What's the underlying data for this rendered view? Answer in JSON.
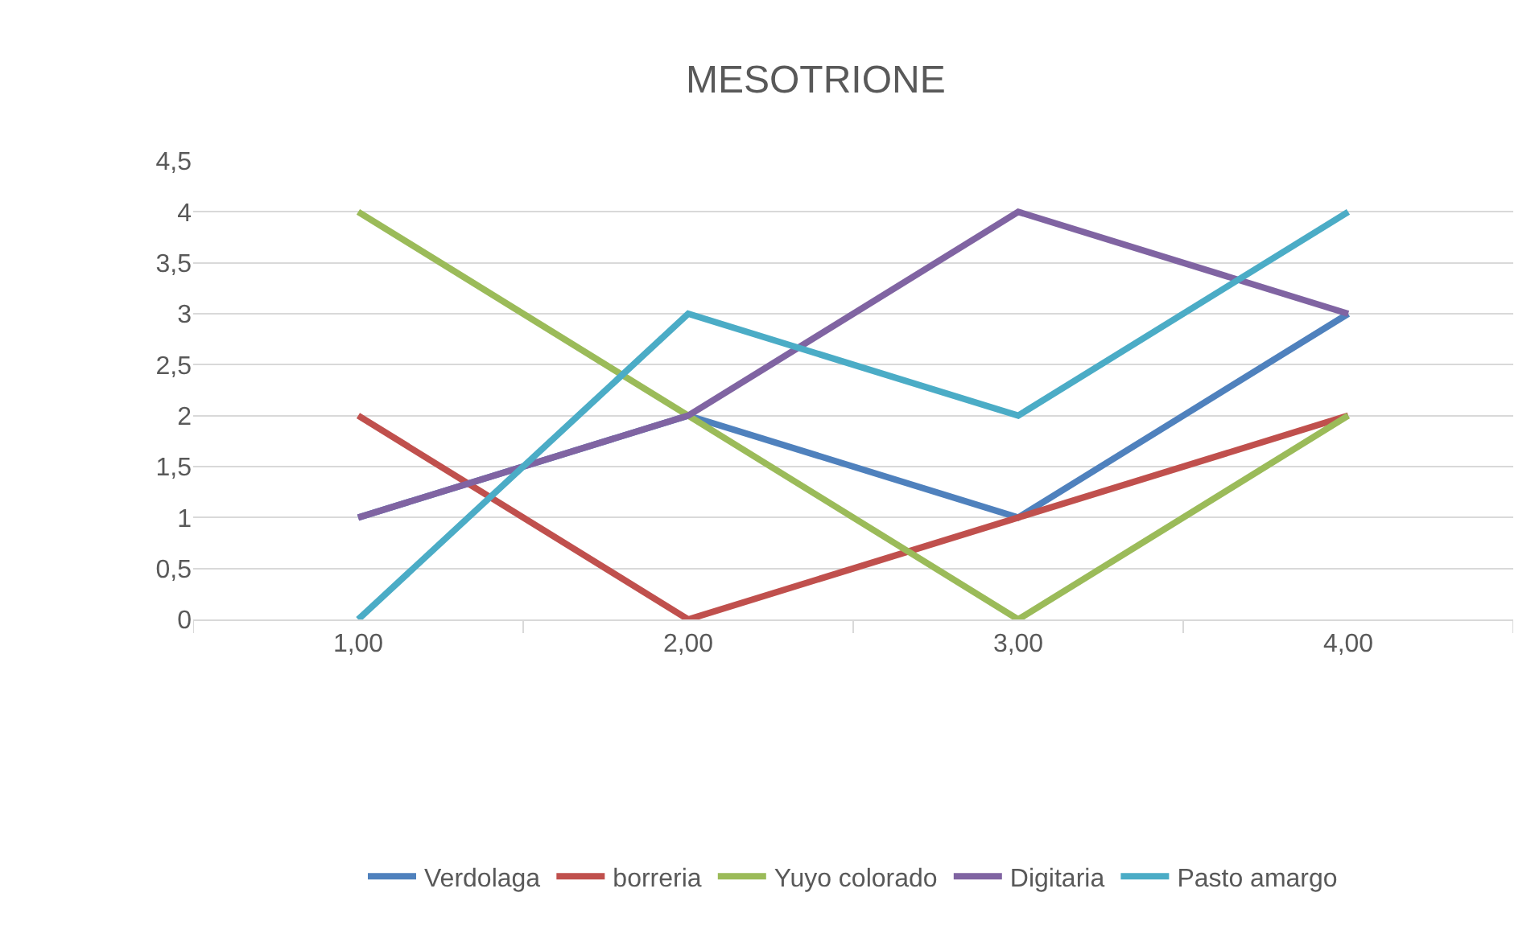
{
  "chart_data": {
    "type": "line",
    "title": "MESOTRIONE",
    "categories": [
      "1,00",
      "2,00",
      "3,00",
      "4,00"
    ],
    "series": [
      {
        "name": "Verdolaga",
        "color": "#4f81bd",
        "values": [
          1,
          2,
          1,
          3
        ]
      },
      {
        "name": "borreria",
        "color": "#c0504d",
        "values": [
          2,
          0,
          1,
          2
        ]
      },
      {
        "name": "Yuyo colorado",
        "color": "#9bbb59",
        "values": [
          4,
          2,
          0,
          2
        ]
      },
      {
        "name": "Digitaria",
        "color": "#8064a2",
        "values": [
          1,
          2,
          4,
          3
        ]
      },
      {
        "name": "Pasto amargo",
        "color": "#4bacc6",
        "values": [
          0,
          3,
          2,
          4
        ]
      }
    ],
    "ylim": [
      0,
      4.5
    ],
    "yticks": [
      0,
      {
        "value": 0.5,
        "label": "0,5"
      },
      1,
      {
        "value": 1.5,
        "label": "1,5"
      },
      2,
      {
        "value": 2.5,
        "label": "2,5"
      },
      3,
      {
        "value": 3.5,
        "label": "3,5"
      },
      4,
      {
        "value": 4.5,
        "label": "4,5"
      }
    ],
    "grid": "y",
    "legend": "bottom",
    "marker": "none",
    "line_style": "solid"
  }
}
